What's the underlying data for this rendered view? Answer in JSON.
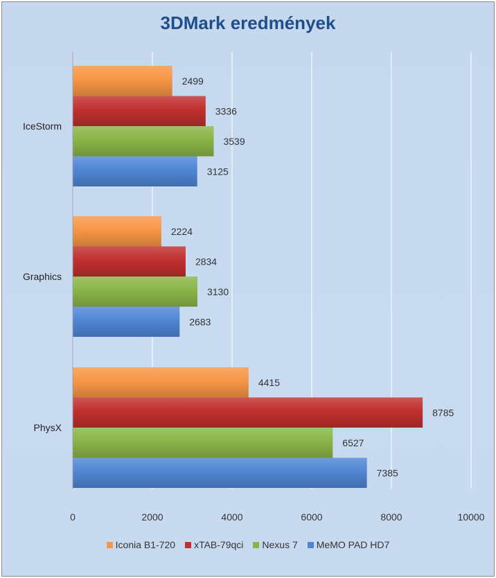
{
  "chart_data": {
    "type": "bar",
    "orientation": "horizontal",
    "title": "3DMark eredmények",
    "categories": [
      "IceStorm",
      "Graphics",
      "PhysX"
    ],
    "series": [
      {
        "name": "Iconia B1-720",
        "color": "#f79646",
        "values": [
          2499,
          2224,
          4415
        ]
      },
      {
        "name": "xTAB-79qci",
        "color": "#c0302e",
        "values": [
          3336,
          2834,
          8785
        ]
      },
      {
        "name": "Nexus 7",
        "color": "#8ab447",
        "values": [
          3539,
          3130,
          6527
        ]
      },
      {
        "name": "MeMO PAD HD7",
        "color": "#4f86d4",
        "values": [
          3125,
          2683,
          7385
        ]
      }
    ],
    "xlim": [
      0,
      10000
    ],
    "xticks": [
      0,
      2000,
      4000,
      6000,
      8000,
      10000
    ],
    "xlabel": "",
    "ylabel": "",
    "grid": true,
    "legend_position": "bottom"
  }
}
